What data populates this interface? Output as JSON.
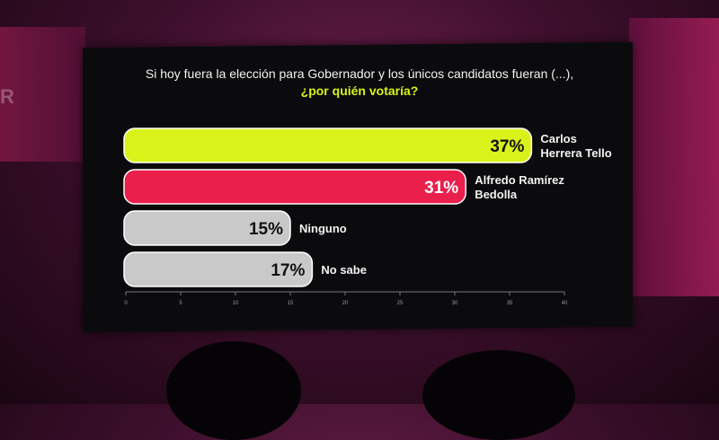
{
  "chart_data": {
    "type": "bar",
    "orientation": "horizontal",
    "title": "Si hoy fuera la elección para Gobernador y los únicos candidatos fueran (...),",
    "subtitle": "¿por quién votaría?",
    "categories": [
      [
        "Carlos",
        "Herrera Tello"
      ],
      [
        "Alfredo Ramírez",
        "Bedolla"
      ],
      [
        "Ninguno"
      ],
      [
        "No sabe"
      ]
    ],
    "values": [
      37,
      31,
      15,
      17
    ],
    "value_labels": [
      "37%",
      "31%",
      "15%",
      "17%"
    ],
    "bar_colors": [
      "#d9f21a",
      "#ea1f4b",
      "#c9c9c9",
      "#c9c9c9"
    ],
    "xlim": [
      0,
      40
    ],
    "xticks": [
      "0",
      "5",
      "10",
      "15",
      "20",
      "25",
      "30",
      "35",
      "40"
    ],
    "grid": false
  },
  "colors": {
    "screen_background": "#0b0b0d",
    "title_text": "#f2f2f2",
    "subtitle_text": "#d9f21a",
    "category_text": "#f2f2f2"
  }
}
